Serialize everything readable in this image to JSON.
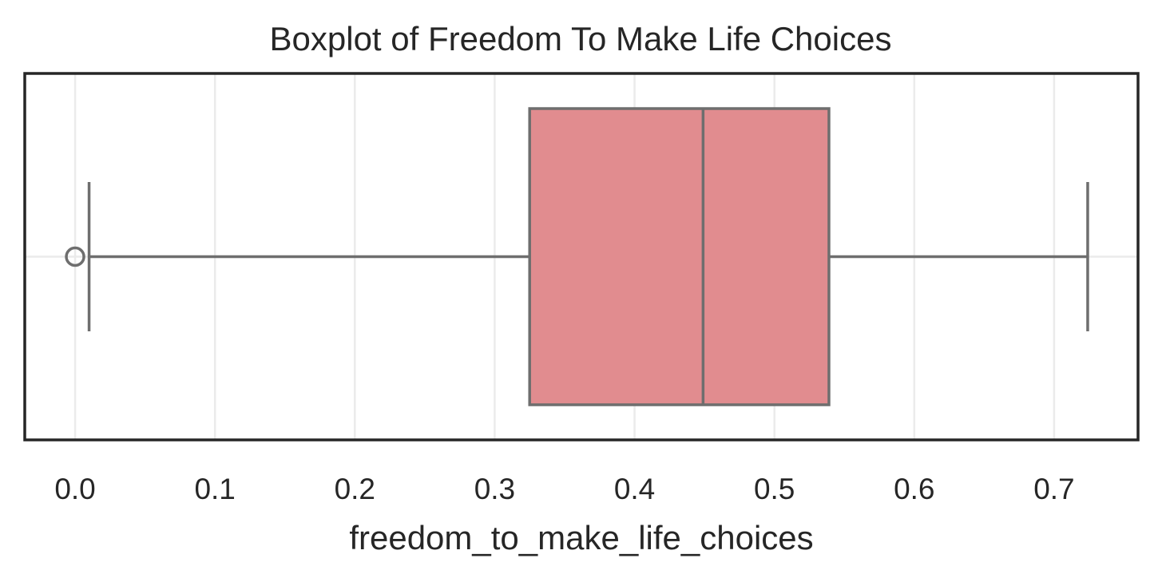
{
  "chart_data": {
    "type": "boxplot",
    "title": "Boxplot of Freedom To Make Life Choices",
    "xlabel": "freedom_to_make_life_choices",
    "ylabel": "",
    "xlim": [
      -0.036,
      0.76
    ],
    "xticks": [
      0.0,
      0.1,
      0.2,
      0.3,
      0.4,
      0.5,
      0.6,
      0.7
    ],
    "xtick_labels": [
      "0.0",
      "0.1",
      "0.2",
      "0.3",
      "0.4",
      "0.5",
      "0.6",
      "0.7"
    ],
    "grid": true,
    "box": {
      "whisker_low": 0.01,
      "q1": 0.325,
      "median": 0.449,
      "q3": 0.539,
      "whisker_high": 0.724,
      "outliers": [
        0.0
      ]
    },
    "colors": {
      "box_fill": "#e18c8f",
      "line": "#6e6e6e",
      "grid": "#ebebeb",
      "frame": "#262626"
    }
  }
}
